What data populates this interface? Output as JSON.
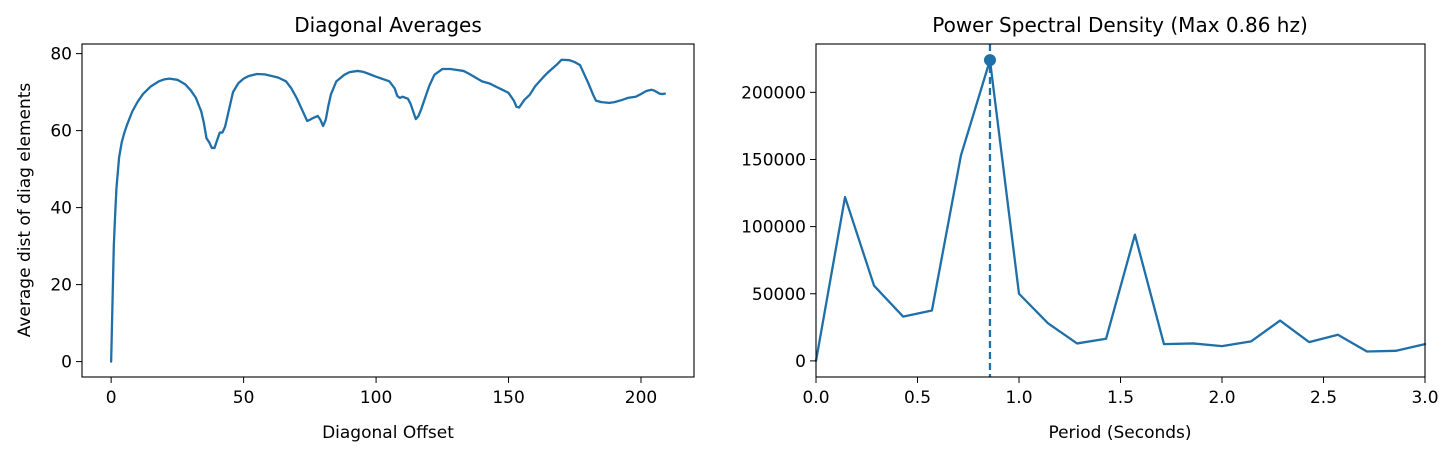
{
  "chart_data": [
    {
      "type": "line",
      "title": "Diagonal Averages",
      "xlabel": "Diagonal Offset",
      "ylabel": "Average dist of diag elements",
      "xlim": [
        -11,
        220
      ],
      "ylim": [
        -4,
        82.5
      ],
      "xticks": [
        0,
        50,
        100,
        150,
        200
      ],
      "yticks": [
        0,
        20,
        40,
        60,
        80
      ],
      "color": "#1f6fa9",
      "grid": false,
      "series": [
        {
          "x": [
            0,
            0.5,
            1,
            1.5,
            2,
            3,
            4,
            5,
            6,
            8,
            10,
            12,
            15,
            18,
            20,
            22,
            25,
            28,
            30,
            32,
            34,
            35,
            36,
            37,
            38,
            39,
            40,
            41,
            42,
            43,
            44,
            45,
            46,
            48,
            50,
            52,
            55,
            58,
            60,
            63,
            66,
            68,
            70,
            72,
            74,
            75,
            76,
            78,
            79,
            80,
            81,
            82,
            83,
            85,
            88,
            90,
            93,
            95,
            97,
            100,
            103,
            105,
            107,
            108,
            109,
            110,
            112,
            113,
            114,
            115,
            116,
            117,
            118,
            120,
            122,
            125,
            128,
            130,
            133,
            135,
            137,
            140,
            143,
            145,
            148,
            150,
            152,
            153,
            154,
            156,
            158,
            160,
            163,
            165,
            168,
            170,
            173,
            175,
            177,
            180,
            182,
            183,
            185,
            188,
            190,
            193,
            195,
            198,
            200,
            202,
            204,
            205,
            206,
            207,
            208,
            209
          ],
          "y": [
            0,
            15,
            30,
            38,
            45,
            53,
            57,
            59.5,
            61.5,
            65,
            67.5,
            69.5,
            71.5,
            72.8,
            73.3,
            73.5,
            73.2,
            72,
            70.5,
            68.5,
            65,
            62,
            58,
            57,
            55.5,
            55.5,
            57.5,
            59.5,
            59.5,
            61,
            64,
            67,
            70,
            72.3,
            73.5,
            74.2,
            74.7,
            74.6,
            74.3,
            73.8,
            72.8,
            71,
            68.5,
            65.5,
            62.5,
            62.8,
            63.2,
            63.8,
            62.8,
            61.2,
            62.8,
            66.5,
            69.5,
            72.8,
            74.5,
            75.2,
            75.5,
            75.3,
            74.8,
            74,
            73.3,
            72.8,
            71,
            69,
            68.5,
            68.8,
            68.3,
            67,
            65,
            63,
            63.8,
            65.5,
            67.5,
            71.5,
            74.5,
            76,
            76,
            75.8,
            75.5,
            74.8,
            74,
            72.8,
            72.2,
            71.5,
            70.5,
            69.8,
            67.8,
            66.2,
            66,
            68,
            69.3,
            71.5,
            73.8,
            75.2,
            77,
            78.4,
            78.3,
            77.8,
            77,
            72.5,
            69.2,
            67.8,
            67.4,
            67.2,
            67.4,
            68,
            68.5,
            68.8,
            69.5,
            70.3,
            70.6,
            70.4,
            70,
            69.6,
            69.5,
            69.6
          ]
        }
      ]
    },
    {
      "type": "line",
      "title": "Power Spectral Density (Max 0.86 hz)",
      "xlabel": "Period (Seconds)",
      "ylabel": "",
      "xlim": [
        0,
        3.0
      ],
      "ylim": [
        -12000,
        236000
      ],
      "xticks": [
        0.0,
        0.5,
        1.0,
        1.5,
        2.0,
        2.5,
        3.0
      ],
      "xtick_labels": [
        "0.0",
        "0.5",
        "1.0",
        "1.5",
        "2.0",
        "2.5",
        "3.0"
      ],
      "yticks": [
        0,
        50000,
        100000,
        150000,
        200000
      ],
      "color": "#1f6fa9",
      "grid": false,
      "series": [
        {
          "x": [
            0.0,
            0.143,
            0.286,
            0.429,
            0.571,
            0.714,
            0.857,
            1.0,
            1.143,
            1.286,
            1.429,
            1.571,
            1.714,
            1.857,
            2.0,
            2.143,
            2.286,
            2.429,
            2.571,
            2.714,
            2.857,
            3.0
          ],
          "y": [
            0,
            122000,
            56000,
            33000,
            37500,
            153000,
            224000,
            50000,
            28000,
            13000,
            16500,
            94000,
            12500,
            13000,
            11000,
            14500,
            30000,
            14000,
            19500,
            7000,
            7500,
            12500
          ]
        }
      ],
      "peak": {
        "x": 0.857,
        "y": 224000,
        "vline": true
      }
    }
  ]
}
